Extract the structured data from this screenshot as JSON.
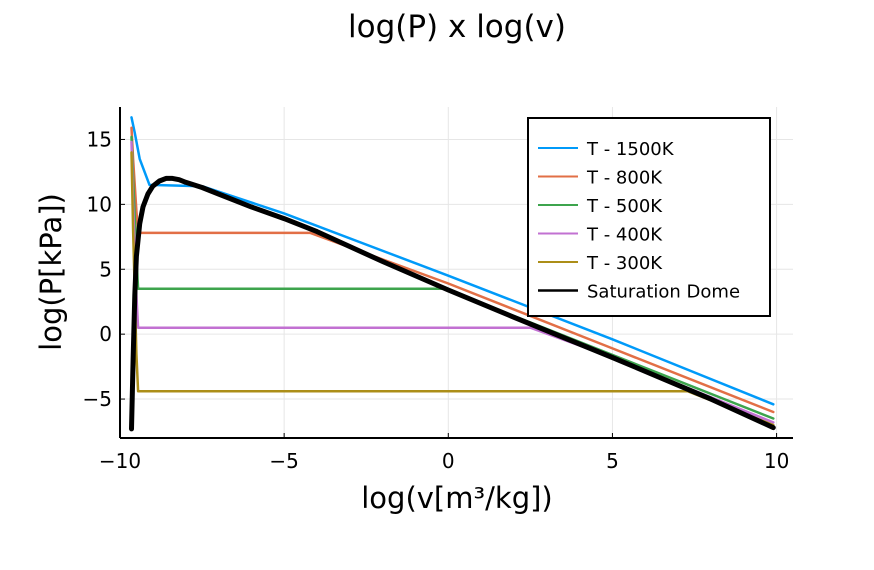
{
  "chart_data": {
    "type": "line",
    "title": "log(P) x log(v)",
    "xlabel": "log(v[m³/kg])",
    "ylabel": "log(P[kPa])",
    "xlim": [
      -10,
      10.5
    ],
    "ylim": [
      -8,
      17.5
    ],
    "x_ticks": [
      -10,
      -5,
      0,
      5,
      10
    ],
    "x_tick_labels": [
      "−10",
      "−5",
      "0",
      "5",
      "10"
    ],
    "y_ticks": [
      -5,
      0,
      5,
      10,
      15
    ],
    "y_tick_labels": [
      "−5",
      "0",
      "5",
      "10",
      "15"
    ],
    "grid": true,
    "legend_position": "top-right",
    "series": [
      {
        "name": "T - 1500K",
        "color": "#009af9",
        "x": [
          -9.65,
          -9.55,
          -9.4,
          -9.1,
          -7.5,
          -5,
          0,
          5,
          9.9
        ],
        "y": [
          16.7,
          15.5,
          13.5,
          11.5,
          11.4,
          9.3,
          4.5,
          -0.4,
          -5.4
        ]
      },
      {
        "name": "T - 800K",
        "color": "#e26f46",
        "x": [
          -9.65,
          -9.6,
          -9.5,
          -9.45,
          -4.2,
          0,
          5,
          9.9
        ],
        "y": [
          15.9,
          13.5,
          9.5,
          7.8,
          7.8,
          3.9,
          -1.1,
          -6.0
        ]
      },
      {
        "name": "T - 500K",
        "color": "#3da44d",
        "x": [
          -9.65,
          -9.6,
          -9.5,
          -9.45,
          -0.1,
          0,
          5,
          9.9
        ],
        "y": [
          15.2,
          12.0,
          6.0,
          3.5,
          3.5,
          3.4,
          -1.6,
          -6.5
        ]
      },
      {
        "name": "T - 400K",
        "color": "#c271d2",
        "x": [
          -9.65,
          -9.6,
          -9.5,
          -9.45,
          2.5,
          5,
          9.9
        ],
        "y": [
          14.8,
          10.0,
          3.0,
          0.5,
          0.5,
          -1.8,
          -6.8
        ]
      },
      {
        "name": "T - 300K",
        "color": "#ac8e18",
        "x": [
          -9.65,
          -9.6,
          -9.5,
          -9.45,
          7.3,
          9.9
        ],
        "y": [
          14.0,
          8.0,
          -1.5,
          -4.4,
          -4.4,
          -7.0
        ]
      },
      {
        "name": "Saturation Dome",
        "color": "#000000",
        "x": [
          -9.65,
          -9.6,
          -9.55,
          -9.5,
          -9.4,
          -9.3,
          -9.15,
          -9.0,
          -8.8,
          -8.6,
          -8.4,
          -8.2,
          -8.0,
          -7.5,
          -7.0,
          -6.0,
          -5.0,
          -4.0,
          -2.0,
          0,
          2,
          5,
          8,
          9.9
        ],
        "y": [
          -7.3,
          -2.0,
          3.0,
          6.0,
          8.5,
          9.8,
          10.8,
          11.4,
          11.8,
          12.0,
          12.0,
          11.9,
          11.7,
          11.3,
          10.8,
          9.8,
          8.9,
          7.9,
          5.6,
          3.4,
          1.3,
          -1.8,
          -5.0,
          -7.2
        ]
      }
    ]
  }
}
